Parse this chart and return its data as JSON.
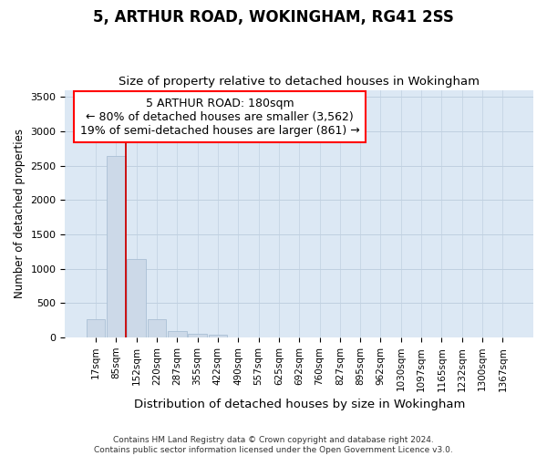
{
  "title": "5, ARTHUR ROAD, WOKINGHAM, RG41 2SS",
  "subtitle": "Size of property relative to detached houses in Wokingham",
  "xlabel": "Distribution of detached houses by size in Wokingham",
  "ylabel": "Number of detached properties",
  "bar_values": [
    270,
    2640,
    1140,
    270,
    95,
    55,
    45,
    0,
    0,
    0,
    0,
    0,
    0,
    0,
    0,
    0,
    0,
    0,
    0,
    0,
    0
  ],
  "bar_labels": [
    "17sqm",
    "85sqm",
    "152sqm",
    "220sqm",
    "287sqm",
    "355sqm",
    "422sqm",
    "490sqm",
    "557sqm",
    "625sqm",
    "692sqm",
    "760sqm",
    "827sqm",
    "895sqm",
    "962sqm",
    "1030sqm",
    "1097sqm",
    "1165sqm",
    "1232sqm",
    "1300sqm",
    "1367sqm"
  ],
  "bar_color": "#ccd9e8",
  "bar_edge_color": "#aabfd4",
  "grid_color": "#c0d0e0",
  "background_color": "#dce8f4",
  "annotation_box_text": "5 ARTHUR ROAD: 180sqm\n← 80% of detached houses are smaller (3,562)\n19% of semi-detached houses are larger (861) →",
  "vline_x": 1.5,
  "vline_color": "#cc0000",
  "ylim": [
    0,
    3600
  ],
  "yticks": [
    0,
    500,
    1000,
    1500,
    2000,
    2500,
    3000,
    3500
  ],
  "footnote": "Contains HM Land Registry data © Crown copyright and database right 2024.\nContains public sector information licensed under the Open Government Licence v3.0.",
  "title_fontsize": 12,
  "subtitle_fontsize": 9.5,
  "ylabel_fontsize": 8.5,
  "xlabel_fontsize": 9.5,
  "tick_fontsize": 7.5,
  "annotation_fontsize": 9
}
